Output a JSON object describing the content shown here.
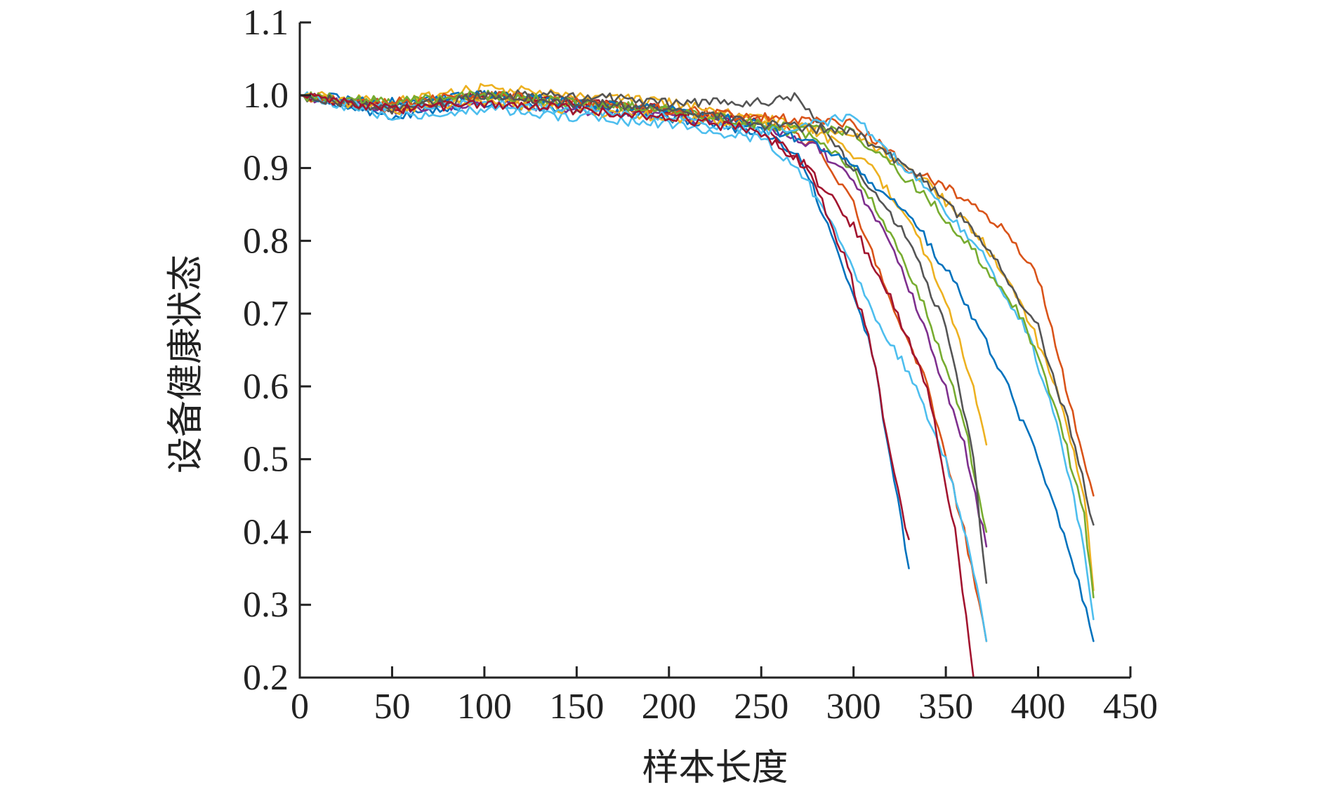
{
  "chart_data": {
    "type": "line",
    "title": "",
    "xlabel": "样本长度",
    "ylabel": "设备健康状态",
    "xlim": [
      0,
      450
    ],
    "ylim": [
      0.2,
      1.1
    ],
    "x_ticks": [
      0,
      50,
      100,
      150,
      200,
      250,
      300,
      350,
      400,
      450
    ],
    "x_tick_labels": [
      "0",
      "50",
      "100",
      "150",
      "200",
      "250",
      "300",
      "350",
      "400",
      "450"
    ],
    "y_ticks": [
      0.2,
      0.3,
      0.4,
      0.5,
      0.6,
      0.7,
      0.8,
      0.9,
      1.0,
      1.1
    ],
    "y_tick_labels": [
      "0.2",
      "0.3",
      "0.4",
      "0.5",
      "0.6",
      "0.7",
      "0.8",
      "0.9",
      "1.0",
      "1.1"
    ],
    "grid": false,
    "legend": false,
    "series": [
      {
        "color": "#0072BD",
        "points": [
          [
            0,
            1.0
          ],
          [
            50,
            0.97
          ],
          [
            100,
            0.99
          ],
          [
            150,
            0.98
          ],
          [
            200,
            0.97
          ],
          [
            250,
            0.95
          ],
          [
            270,
            0.92
          ],
          [
            290,
            0.8
          ],
          [
            310,
            0.65
          ],
          [
            320,
            0.5
          ],
          [
            330,
            0.35
          ]
        ]
      },
      {
        "color": "#D95319",
        "points": [
          [
            0,
            1.0
          ],
          [
            50,
            0.98
          ],
          [
            100,
            1.0
          ],
          [
            150,
            0.99
          ],
          [
            200,
            0.98
          ],
          [
            250,
            0.97
          ],
          [
            280,
            0.93
          ],
          [
            300,
            0.85
          ],
          [
            320,
            0.72
          ],
          [
            340,
            0.6
          ],
          [
            360,
            0.4
          ],
          [
            372,
            0.25
          ]
        ]
      },
      {
        "color": "#EDB120",
        "points": [
          [
            0,
            1.0
          ],
          [
            50,
            0.99
          ],
          [
            100,
            1.01
          ],
          [
            150,
            1.0
          ],
          [
            200,
            0.99
          ],
          [
            250,
            0.97
          ],
          [
            280,
            0.95
          ],
          [
            310,
            0.9
          ],
          [
            330,
            0.83
          ],
          [
            350,
            0.72
          ],
          [
            365,
            0.6
          ],
          [
            372,
            0.52
          ]
        ]
      },
      {
        "color": "#7E2F8E",
        "points": [
          [
            0,
            1.0
          ],
          [
            50,
            0.98
          ],
          [
            100,
            0.99
          ],
          [
            150,
            0.98
          ],
          [
            200,
            0.97
          ],
          [
            250,
            0.96
          ],
          [
            280,
            0.93
          ],
          [
            300,
            0.88
          ],
          [
            320,
            0.8
          ],
          [
            340,
            0.67
          ],
          [
            360,
            0.52
          ],
          [
            372,
            0.38
          ]
        ]
      },
      {
        "color": "#77AC30",
        "points": [
          [
            0,
            1.0
          ],
          [
            50,
            0.99
          ],
          [
            100,
            1.0
          ],
          [
            150,
            0.99
          ],
          [
            200,
            0.98
          ],
          [
            250,
            0.96
          ],
          [
            280,
            0.94
          ],
          [
            300,
            0.9
          ],
          [
            320,
            0.81
          ],
          [
            340,
            0.7
          ],
          [
            360,
            0.55
          ],
          [
            372,
            0.4
          ]
        ]
      },
      {
        "color": "#4DBEEE",
        "points": [
          [
            0,
            1.0
          ],
          [
            50,
            0.97
          ],
          [
            100,
            0.98
          ],
          [
            150,
            0.97
          ],
          [
            200,
            0.96
          ],
          [
            250,
            0.94
          ],
          [
            270,
            0.9
          ],
          [
            290,
            0.82
          ],
          [
            310,
            0.7
          ],
          [
            330,
            0.62
          ],
          [
            350,
            0.5
          ],
          [
            365,
            0.35
          ],
          [
            372,
            0.25
          ]
        ]
      },
      {
        "color": "#A2142F",
        "points": [
          [
            0,
            1.0
          ],
          [
            50,
            0.98
          ],
          [
            100,
            1.0
          ],
          [
            150,
            0.99
          ],
          [
            200,
            0.98
          ],
          [
            250,
            0.96
          ],
          [
            275,
            0.9
          ],
          [
            295,
            0.78
          ],
          [
            310,
            0.65
          ],
          [
            320,
            0.5
          ],
          [
            330,
            0.39
          ]
        ]
      },
      {
        "color": "#555555",
        "points": [
          [
            0,
            1.0
          ],
          [
            50,
            0.98
          ],
          [
            100,
            1.0
          ],
          [
            150,
            1.0
          ],
          [
            200,
            0.99
          ],
          [
            250,
            0.99
          ],
          [
            270,
            1.0
          ],
          [
            290,
            0.93
          ],
          [
            310,
            0.87
          ],
          [
            330,
            0.8
          ],
          [
            350,
            0.68
          ],
          [
            365,
            0.5
          ],
          [
            372,
            0.33
          ]
        ]
      },
      {
        "color": "#0072BD",
        "points": [
          [
            0,
            1.0
          ],
          [
            50,
            0.99
          ],
          [
            100,
            1.0
          ],
          [
            150,
            0.99
          ],
          [
            200,
            0.98
          ],
          [
            250,
            0.96
          ],
          [
            290,
            0.92
          ],
          [
            330,
            0.84
          ],
          [
            360,
            0.72
          ],
          [
            380,
            0.62
          ],
          [
            400,
            0.5
          ],
          [
            420,
            0.35
          ],
          [
            430,
            0.25
          ]
        ]
      },
      {
        "color": "#D95319",
        "points": [
          [
            0,
            1.0
          ],
          [
            50,
            0.99
          ],
          [
            100,
            1.0
          ],
          [
            150,
            0.99
          ],
          [
            200,
            0.98
          ],
          [
            250,
            0.97
          ],
          [
            300,
            0.96
          ],
          [
            330,
            0.9
          ],
          [
            360,
            0.86
          ],
          [
            380,
            0.82
          ],
          [
            400,
            0.75
          ],
          [
            415,
            0.6
          ],
          [
            430,
            0.45
          ]
        ]
      },
      {
        "color": "#EDB120",
        "points": [
          [
            0,
            1.0
          ],
          [
            50,
            0.98
          ],
          [
            100,
            0.99
          ],
          [
            150,
            0.98
          ],
          [
            200,
            0.97
          ],
          [
            250,
            0.96
          ],
          [
            300,
            0.95
          ],
          [
            340,
            0.88
          ],
          [
            370,
            0.8
          ],
          [
            390,
            0.72
          ],
          [
            410,
            0.6
          ],
          [
            425,
            0.45
          ],
          [
            430,
            0.32
          ]
        ]
      },
      {
        "color": "#4DBEEE",
        "points": [
          [
            0,
            1.0
          ],
          [
            50,
            0.98
          ],
          [
            100,
            0.99
          ],
          [
            150,
            0.98
          ],
          [
            200,
            0.97
          ],
          [
            250,
            0.95
          ],
          [
            300,
            0.97
          ],
          [
            340,
            0.87
          ],
          [
            370,
            0.78
          ],
          [
            395,
            0.67
          ],
          [
            410,
            0.55
          ],
          [
            425,
            0.38
          ],
          [
            430,
            0.28
          ]
        ]
      },
      {
        "color": "#77AC30",
        "points": [
          [
            0,
            1.0
          ],
          [
            50,
            0.99
          ],
          [
            100,
            1.0
          ],
          [
            150,
            0.99
          ],
          [
            200,
            0.98
          ],
          [
            250,
            0.96
          ],
          [
            300,
            0.95
          ],
          [
            340,
            0.86
          ],
          [
            370,
            0.77
          ],
          [
            390,
            0.7
          ],
          [
            410,
            0.57
          ],
          [
            425,
            0.42
          ],
          [
            430,
            0.31
          ]
        ]
      },
      {
        "color": "#555555",
        "points": [
          [
            0,
            1.0
          ],
          [
            50,
            0.98
          ],
          [
            100,
            1.0
          ],
          [
            150,
            0.99
          ],
          [
            200,
            0.98
          ],
          [
            250,
            0.96
          ],
          [
            300,
            0.95
          ],
          [
            340,
            0.88
          ],
          [
            370,
            0.8
          ],
          [
            400,
            0.68
          ],
          [
            420,
            0.52
          ],
          [
            430,
            0.41
          ]
        ]
      },
      {
        "color": "#A2142F",
        "points": [
          [
            0,
            1.0
          ],
          [
            50,
            0.98
          ],
          [
            100,
            0.99
          ],
          [
            150,
            0.98
          ],
          [
            200,
            0.97
          ],
          [
            250,
            0.95
          ],
          [
            275,
            0.9
          ],
          [
            300,
            0.82
          ],
          [
            320,
            0.72
          ],
          [
            340,
            0.6
          ],
          [
            355,
            0.4
          ],
          [
            365,
            0.2
          ]
        ]
      }
    ]
  }
}
